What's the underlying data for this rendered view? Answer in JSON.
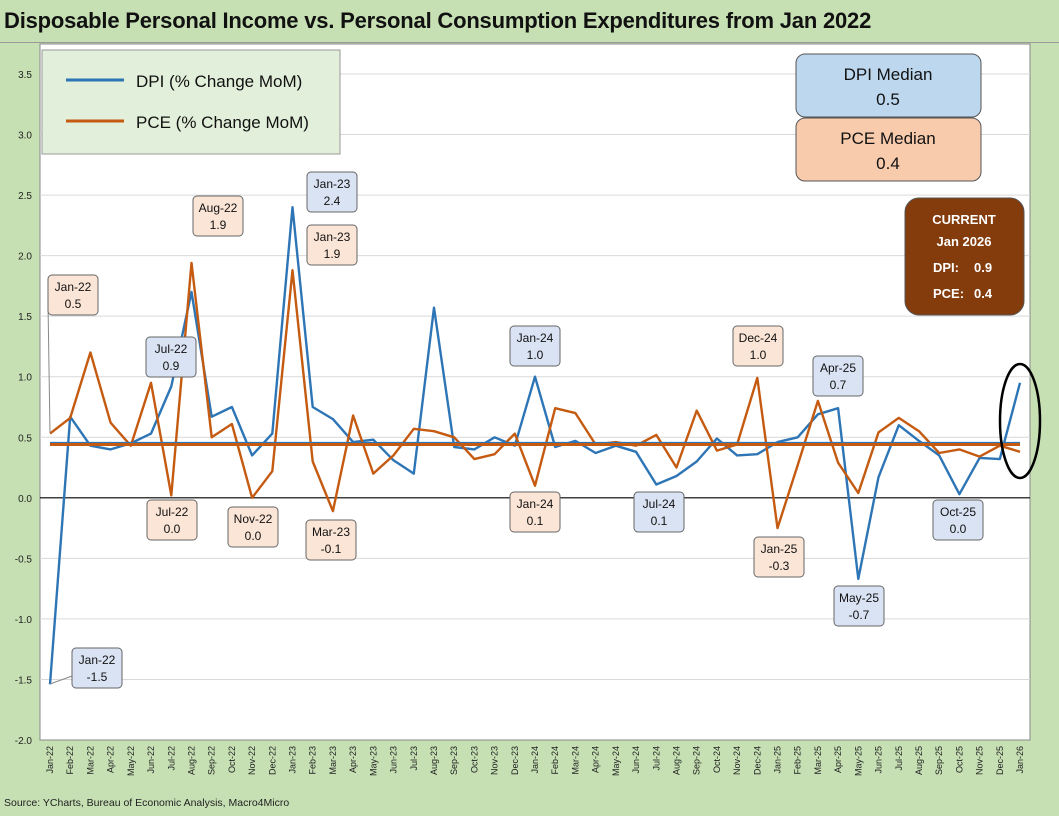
{
  "title": "Disposable Personal Income vs. Personal Consumption Expenditures from Jan 2022",
  "source": "Source: YCharts, Bureau of Economic Analysis, Macro4Micro",
  "colors": {
    "dpi": "#2e75b6",
    "pce": "#c55a11",
    "plot_bg": "#ffffff",
    "page_bg": "#c6e0b4",
    "current_box": "#843c0c"
  },
  "legend": {
    "dpi_label": "DPI (% Change MoM)",
    "pce_label": "PCE (% Change MoM)"
  },
  "medians": {
    "dpi_title": "DPI Median",
    "dpi_value": "0.5",
    "pce_title": "PCE Median",
    "pce_value": "0.4"
  },
  "current": {
    "title": "CURRENT",
    "date": "Jan 2026",
    "dpi_label": "DPI:",
    "dpi_value": "0.9",
    "pce_label": "PCE:",
    "pce_value": "0.4"
  },
  "chart_data": {
    "type": "line",
    "title": "Disposable Personal Income vs. Personal Consumption Expenditures from Jan 2022",
    "ylim": [
      -2.0,
      3.5
    ],
    "yticks": [
      "3.5",
      "3.0",
      "2.5",
      "2.0",
      "1.5",
      "1.0",
      "0.5",
      "0.0",
      "-0.5",
      "-1.0",
      "-1.5",
      "-2.0"
    ],
    "grid": true,
    "legend_position": "top-left",
    "categories": [
      "Jan-22",
      "Feb-22",
      "Mar-22",
      "Apr-22",
      "May-22",
      "Jun-22",
      "Jul-22",
      "Aug-22",
      "Sep-22",
      "Oct-22",
      "Nov-22",
      "Dec-22",
      "Jan-23",
      "Feb-23",
      "Mar-23",
      "Apr-23",
      "May-23",
      "Jun-23",
      "Jul-23",
      "Aug-23",
      "Sep-23",
      "Oct-23",
      "Nov-23",
      "Dec-23",
      "Jan-24",
      "Feb-24",
      "Mar-24",
      "Apr-24",
      "May-24",
      "Jun-24",
      "Jul-24",
      "Aug-24",
      "Sep-24",
      "Oct-24",
      "Nov-24",
      "Dec-24",
      "Jan-25",
      "Feb-25",
      "Mar-25",
      "Apr-25",
      "May-25",
      "Jun-25",
      "Jul-25",
      "Aug-25",
      "Sep-25",
      "Oct-25",
      "Nov-25",
      "Dec-25",
      "Jan-26"
    ],
    "series": [
      {
        "name": "DPI (% Change MoM)",
        "values": [
          -1.54,
          0.67,
          0.43,
          0.4,
          0.45,
          0.53,
          0.92,
          1.7,
          0.67,
          0.75,
          0.35,
          0.53,
          2.4,
          0.75,
          0.65,
          0.46,
          0.48,
          0.31,
          0.2,
          1.57,
          0.42,
          0.4,
          0.5,
          0.43,
          1.0,
          0.42,
          0.47,
          0.37,
          0.43,
          0.38,
          0.11,
          0.18,
          0.3,
          0.49,
          0.35,
          0.36,
          0.46,
          0.5,
          0.69,
          0.74,
          -0.67,
          0.17,
          0.6,
          0.47,
          0.35,
          0.03,
          0.33,
          0.32,
          0.95
        ]
      },
      {
        "name": "PCE (% Change MoM)",
        "values": [
          0.53,
          0.66,
          1.2,
          0.62,
          0.43,
          0.95,
          0.02,
          1.94,
          0.5,
          0.61,
          0.0,
          0.22,
          1.88,
          0.3,
          -0.11,
          0.68,
          0.2,
          0.35,
          0.57,
          0.55,
          0.5,
          0.32,
          0.36,
          0.53,
          0.1,
          0.74,
          0.7,
          0.44,
          0.46,
          0.43,
          0.52,
          0.25,
          0.72,
          0.39,
          0.44,
          0.99,
          -0.25,
          0.27,
          0.8,
          0.29,
          0.04,
          0.54,
          0.66,
          0.55,
          0.37,
          0.4,
          0.34,
          0.43,
          0.38
        ]
      }
    ],
    "medians": {
      "dpi": 0.45,
      "pce": 0.44
    },
    "annotations": [
      {
        "series": "dpi",
        "label": "Jan-22",
        "value": "-1.5"
      },
      {
        "series": "pce",
        "label": "Jan-22",
        "value": "0.5"
      },
      {
        "series": "dpi",
        "label": "Jul-22",
        "value": "0.9"
      },
      {
        "series": "pce",
        "label": "Jul-22",
        "value": "0.0"
      },
      {
        "series": "pce",
        "label": "Aug-22",
        "value": "1.9"
      },
      {
        "series": "pce",
        "label": "Nov-22",
        "value": "0.0"
      },
      {
        "series": "dpi",
        "label": "Jan-23",
        "value": "2.4"
      },
      {
        "series": "pce",
        "label": "Jan-23",
        "value": "1.9"
      },
      {
        "series": "pce",
        "label": "Mar-23",
        "value": "-0.1"
      },
      {
        "series": "dpi",
        "label": "Jan-24",
        "value": "1.0"
      },
      {
        "series": "pce",
        "label": "Jan-24",
        "value": "0.1"
      },
      {
        "series": "dpi",
        "label": "Jul-24",
        "value": "0.1"
      },
      {
        "series": "pce",
        "label": "Dec-24",
        "value": "1.0"
      },
      {
        "series": "pce",
        "label": "Jan-25",
        "value": "-0.3"
      },
      {
        "series": "dpi",
        "label": "Apr-25",
        "value": "0.7"
      },
      {
        "series": "dpi",
        "label": "May-25",
        "value": "-0.7"
      },
      {
        "series": "dpi",
        "label": "Oct-25",
        "value": "0.0"
      }
    ]
  }
}
